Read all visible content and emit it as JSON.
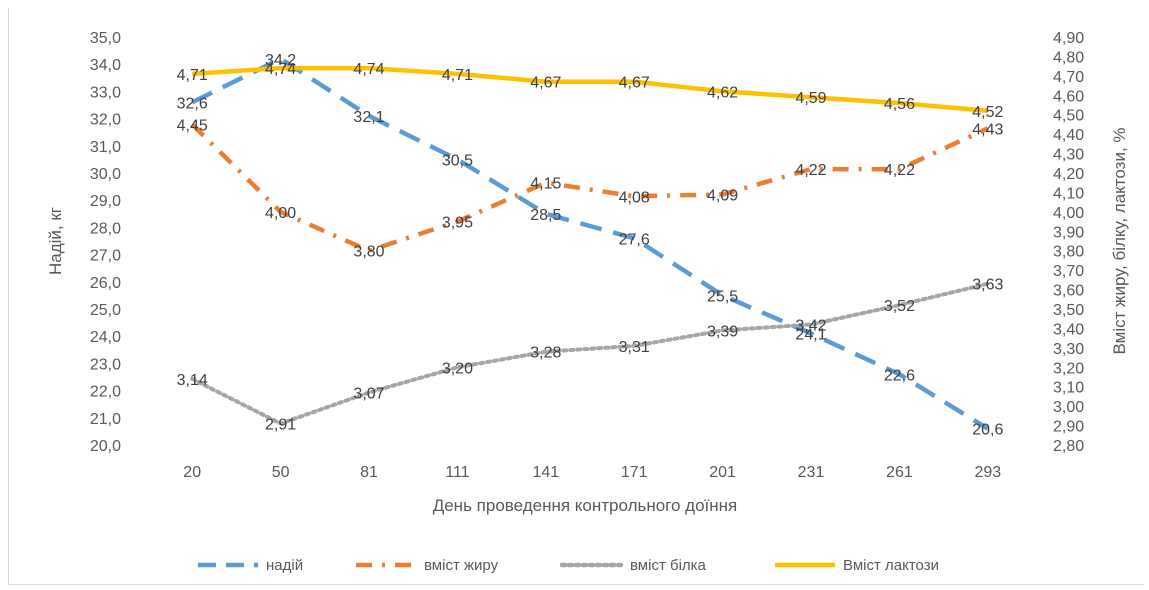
{
  "chart_data": {
    "type": "line",
    "x": [
      "20",
      "50",
      "81",
      "111",
      "141",
      "171",
      "201",
      "231",
      "261",
      "293"
    ],
    "xlabel": "День проведення контрольного доїння",
    "ylabel_left": "Надій, кг",
    "ylabel_right": "Вміст жиру, білку, лактози, %",
    "ylim_left": [
      20,
      35
    ],
    "ylim_right": [
      2.8,
      4.9
    ],
    "left_ticks": [
      "20,0",
      "21,0",
      "22,0",
      "23,0",
      "24,0",
      "25,0",
      "26,0",
      "27,0",
      "28,0",
      "29,0",
      "30,0",
      "31,0",
      "32,0",
      "33,0",
      "34,0",
      "35,0"
    ],
    "right_ticks": [
      "2,80",
      "2,90",
      "3,00",
      "3,10",
      "3,20",
      "3,30",
      "3,40",
      "3,50",
      "3,60",
      "3,70",
      "3,80",
      "3,90",
      "4,00",
      "4,10",
      "4,20",
      "4,30",
      "4,40",
      "4,50",
      "4,60",
      "4,70",
      "4,80",
      "4,90"
    ],
    "grid": false,
    "legend_position": "bottom",
    "series": [
      {
        "name": "надій",
        "axis": "left",
        "color": "#5b9bd5",
        "style": "long-dash",
        "values": [
          32.6,
          34.2,
          32.1,
          30.5,
          28.5,
          27.6,
          25.5,
          24.1,
          22.6,
          20.6
        ],
        "labels": [
          "32,6",
          "34,2",
          "32,1",
          "30,5",
          "28,5",
          "27,6",
          "25,5",
          "24,1",
          "22,6",
          "20,6"
        ]
      },
      {
        "name": "вміст жиру",
        "axis": "right",
        "color": "#ed7d31",
        "style": "dash-dot",
        "values": [
          4.45,
          4.0,
          3.8,
          3.95,
          4.15,
          4.08,
          4.09,
          4.22,
          4.22,
          4.43
        ],
        "labels": [
          "4,45",
          "4,00",
          "3,80",
          "3,95",
          "4,15",
          "4,08",
          "4,09",
          "4,22",
          "4,22",
          "4,43"
        ]
      },
      {
        "name": "вміст білка",
        "axis": "right",
        "color": "#a5a5a5",
        "style": "dotted",
        "values": [
          3.14,
          2.91,
          3.07,
          3.2,
          3.28,
          3.31,
          3.39,
          3.42,
          3.52,
          3.63
        ],
        "labels": [
          "3,14",
          "2,91",
          "3,07",
          "3,20",
          "3,28",
          "3,31",
          "3,39",
          "3,42",
          "3,52",
          "3,63"
        ]
      },
      {
        "name": "Вміст лактози",
        "axis": "right",
        "color": "#ffc000",
        "style": "solid",
        "values": [
          4.71,
          4.74,
          4.74,
          4.71,
          4.67,
          4.67,
          4.62,
          4.59,
          4.56,
          4.52
        ],
        "labels": [
          "4,71",
          "4,74",
          "4,74",
          "4,71",
          "4,67",
          "4,67",
          "4,62",
          "4,59",
          "4,56",
          "4,52"
        ]
      }
    ]
  }
}
